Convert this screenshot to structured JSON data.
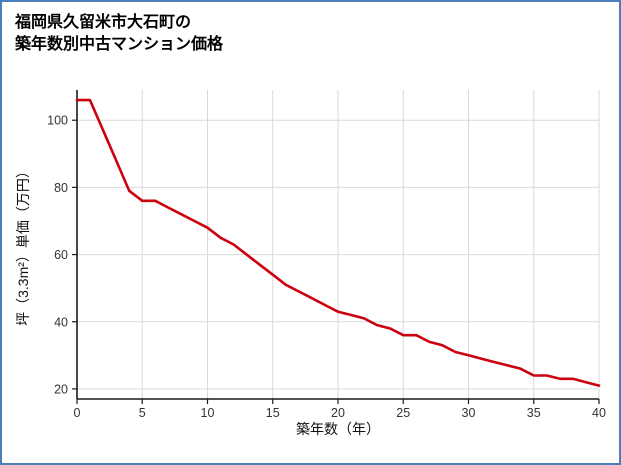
{
  "frame": {
    "border_color": "#4a7ebb",
    "background": "#ffffff"
  },
  "title": {
    "line1": "福岡県久留米市大石町の",
    "line2": "築年数別中古マンション価格"
  },
  "chart_data": {
    "type": "line",
    "title": "福岡県久留米市大石町の築年数別中古マンション価格",
    "xlabel": "築年数（年）",
    "ylabel": "坪（3.3m²）単価（万円）",
    "x": [
      0,
      1,
      2,
      3,
      4,
      5,
      6,
      7,
      8,
      9,
      10,
      11,
      12,
      13,
      14,
      15,
      16,
      17,
      18,
      19,
      20,
      21,
      22,
      23,
      24,
      25,
      26,
      27,
      28,
      29,
      30,
      31,
      32,
      33,
      34,
      35,
      36,
      37,
      38,
      39,
      40
    ],
    "values": [
      106,
      106,
      97,
      88,
      79,
      76,
      76,
      74,
      72,
      70,
      68,
      65,
      63,
      60,
      57,
      54,
      51,
      49,
      47,
      45,
      43,
      42,
      41,
      39,
      38,
      36,
      36,
      34,
      33,
      31,
      30,
      29,
      28,
      27,
      26,
      24,
      24,
      23,
      23,
      22,
      21
    ],
    "xticks": [
      0,
      5,
      10,
      15,
      20,
      25,
      30,
      35,
      40
    ],
    "yticks": [
      20,
      40,
      60,
      80,
      100
    ],
    "xlim": [
      0,
      40
    ],
    "ylim": [
      17,
      109
    ],
    "grid": true,
    "legend": false,
    "line_color": "#cc000e",
    "grid_color": "#d9d9d9",
    "axis_color": "#1a1a1a",
    "tick_color": "#333333"
  }
}
